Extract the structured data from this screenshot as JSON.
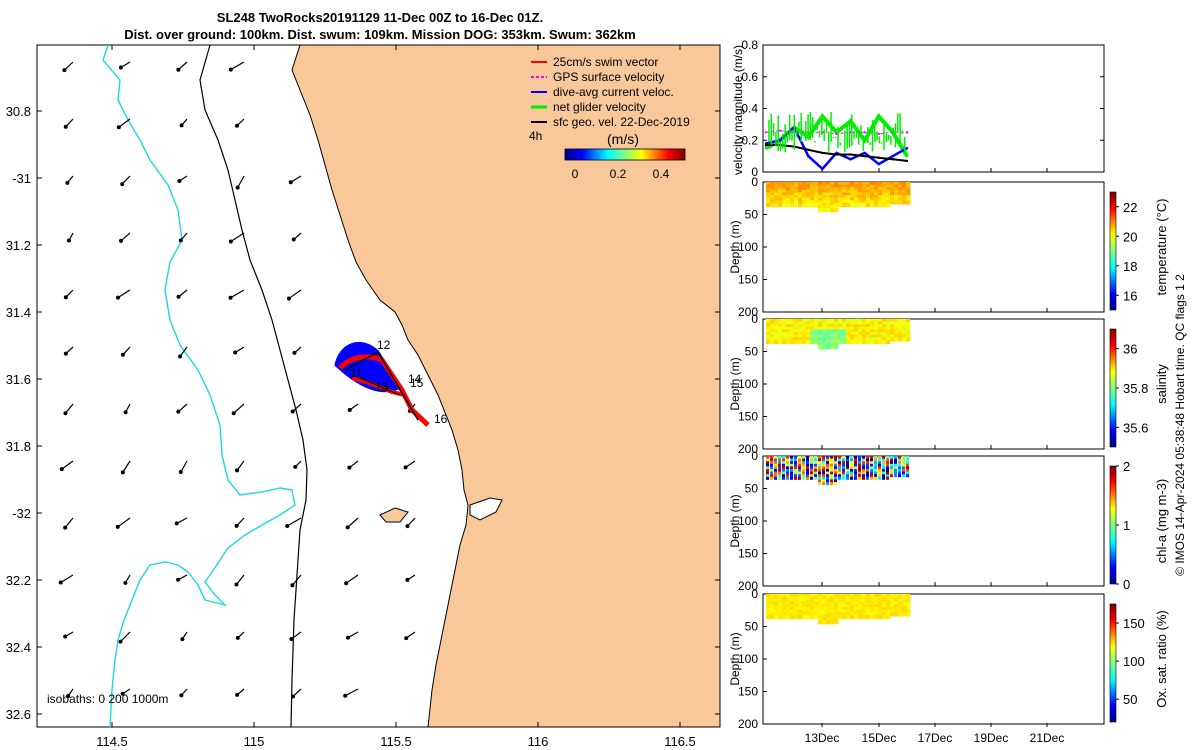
{
  "header": {
    "title_line1": "SL248 TwoRocks20191129 11-Dec 00Z to 16-Dec 01Z.",
    "title_line2": "Dist. over ground: 100km. Dist. swum: 109km. Mission DOG: 353km. Swum: 362km"
  },
  "colors": {
    "land": "#f8c89a",
    "coast": "#000000",
    "isobath_200": "#000000",
    "isobath_1000": "#1ed8e0",
    "swim_vector": "#ff0000",
    "gps_velocity": "#ff00ff",
    "current_vector": "#0000ff",
    "net_velocity": "#00ee00",
    "geo_velocity": "#000000"
  },
  "map": {
    "lon_ticks": [
      "114.5",
      "115",
      "115.5",
      "116",
      "116.5"
    ],
    "lat_ticks": [
      "30.8",
      "-31",
      "31.2",
      "31.4",
      "31.6",
      "31.8",
      "-32",
      "32.2",
      "32.4",
      "32.6"
    ],
    "legend": [
      {
        "label": "25cm/s swim vector",
        "color": "#ff0000"
      },
      {
        "label": "GPS surface velocity",
        "color": "#ff00ff"
      },
      {
        "label": "dive-avg current veloc.",
        "color": "#0000ff"
      },
      {
        "label": "net glider velocity",
        "color": "#00ee00"
      },
      {
        "label": "sfc geo. vel. 22-Dec-2019",
        "color": "#000000"
      }
    ],
    "time_label": "4h",
    "colorbar_label": "(m/s)",
    "colorbar_ticks": [
      "0",
      "0.2",
      "0.4"
    ],
    "isobath_label": "isobaths: 0   200  1000m",
    "track_day_labels": [
      "12",
      "11",
      "13",
      "14",
      "15",
      "16"
    ]
  },
  "panels": {
    "x_ticks": [
      "13Dec",
      "15Dec",
      "17Dec",
      "19Dec",
      "21Dec"
    ],
    "velocity": {
      "ylabel": "velocity magnitude (m/s)",
      "yticks": [
        "0",
        "0.2",
        "0.4",
        "0.6",
        "0.8"
      ]
    },
    "depth_ylabel": "Depth (m)",
    "depth_ticks": [
      "0",
      "50",
      "100",
      "150",
      "200"
    ],
    "temperature": {
      "label": "temperature (°C)",
      "cticks": [
        "16",
        "18",
        "20",
        "22"
      ]
    },
    "salinity": {
      "label": "salinity",
      "cticks": [
        "35.6",
        "35.8",
        "36"
      ]
    },
    "chla": {
      "label": "chl-a (mg m-3)",
      "cticks": [
        "0",
        "1",
        "2"
      ]
    },
    "oxygen": {
      "label": "Ox. sat. ratio (%)",
      "cticks": [
        "50",
        "100",
        "150"
      ]
    }
  },
  "footer": {
    "credit": "© IMOS 14-Apr-2024 05:38:48 Hobart time. QC flags 1  2"
  },
  "chart_data": [
    {
      "type": "line",
      "title": "",
      "ylabel": "velocity magnitude (m/s)",
      "ylim": [
        0,
        0.8
      ],
      "x_ticks": [
        "13Dec",
        "15Dec",
        "17Dec",
        "19Dec",
        "21Dec"
      ],
      "series": [
        {
          "name": "net glider velocity",
          "x": [
            11.0,
            11.5,
            12.0,
            12.5,
            13.0,
            13.5,
            14.0,
            14.5,
            15.0,
            15.5,
            16.0
          ],
          "y": [
            0.15,
            0.2,
            0.28,
            0.22,
            0.35,
            0.25,
            0.32,
            0.2,
            0.35,
            0.25,
            0.1
          ]
        },
        {
          "name": "dive-avg current veloc.",
          "x": [
            11.0,
            11.5,
            12.0,
            12.5,
            13.0,
            13.5,
            14.0,
            14.5,
            15.0,
            15.5,
            16.0
          ],
          "y": [
            0.18,
            0.2,
            0.28,
            0.1,
            0.02,
            0.12,
            0.08,
            0.12,
            0.05,
            0.1,
            0.15
          ]
        },
        {
          "name": "sfc geo. vel. 22-Dec-2019",
          "x": [
            11.0,
            11.5,
            12.0,
            12.5,
            13.0,
            13.5,
            14.0,
            14.5,
            15.0,
            15.5,
            16.0
          ],
          "y": [
            0.17,
            0.17,
            0.16,
            0.14,
            0.12,
            0.11,
            0.11,
            0.1,
            0.09,
            0.08,
            0.07
          ]
        },
        {
          "name": "GPS surface velocity",
          "x": [
            11.0,
            11.5,
            12.0,
            12.5,
            13.0,
            13.5,
            14.0,
            14.5,
            15.0,
            15.5,
            16.0
          ],
          "y": [
            0.25,
            0.26,
            0.25,
            0.25,
            0.25,
            0.24,
            0.25,
            0.25,
            0.24,
            0.25,
            0.25
          ]
        }
      ]
    },
    {
      "type": "heatmap",
      "ylabel": "Depth (m)",
      "ylim": [
        200,
        0
      ],
      "colorbar": "temperature (°C)",
      "clim": [
        15,
        23
      ]
    },
    {
      "type": "heatmap",
      "ylabel": "Depth (m)",
      "ylim": [
        200,
        0
      ],
      "colorbar": "salinity",
      "clim": [
        35.5,
        36.1
      ]
    },
    {
      "type": "heatmap",
      "ylabel": "Depth (m)",
      "ylim": [
        200,
        0
      ],
      "colorbar": "chl-a (mg m-3)",
      "clim": [
        0,
        2
      ]
    },
    {
      "type": "heatmap",
      "ylabel": "Depth (m)",
      "ylim": [
        200,
        0
      ],
      "colorbar": "Ox. sat. ratio (%)",
      "clim": [
        20,
        175
      ]
    }
  ]
}
